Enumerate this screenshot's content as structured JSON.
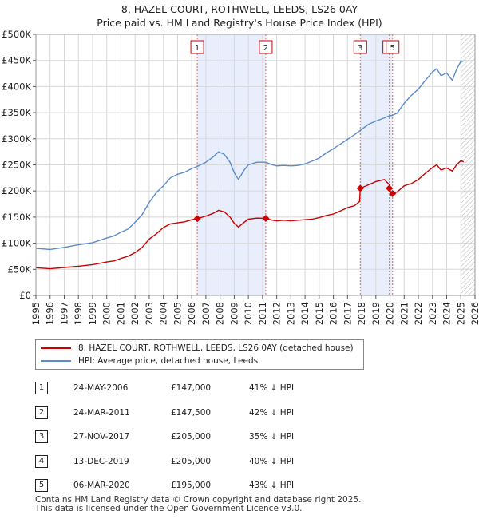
{
  "chart_data": {
    "type": "line",
    "title": "8, HAZEL COURT, ROTHWELL, LEEDS, LS26 0AY",
    "subtitle": "Price paid vs. HM Land Registry's House Price Index (HPI)",
    "xlim": [
      1995,
      2026
    ],
    "ylim": [
      0,
      500000
    ],
    "x_ticks": [
      "1995",
      "1996",
      "1997",
      "1998",
      "1999",
      "2000",
      "2001",
      "2002",
      "2003",
      "2004",
      "2005",
      "2006",
      "2007",
      "2008",
      "2009",
      "2010",
      "2011",
      "2012",
      "2013",
      "2014",
      "2015",
      "2016",
      "2017",
      "2018",
      "2019",
      "2020",
      "2021",
      "2022",
      "2023",
      "2024",
      "2025",
      "2026"
    ],
    "y_ticks": [
      {
        "value": 0,
        "label": "£0"
      },
      {
        "value": 50000,
        "label": "£50K"
      },
      {
        "value": 100000,
        "label": "£100K"
      },
      {
        "value": 150000,
        "label": "£150K"
      },
      {
        "value": 200000,
        "label": "£200K"
      },
      {
        "value": 250000,
        "label": "£250K"
      },
      {
        "value": 300000,
        "label": "£300K"
      },
      {
        "value": 350000,
        "label": "£350K"
      },
      {
        "value": 400000,
        "label": "£400K"
      },
      {
        "value": 450000,
        "label": "£450K"
      },
      {
        "value": 500000,
        "label": "£500K"
      }
    ],
    "shaded_periods": [
      [
        2006.39,
        2011.23
      ],
      [
        2017.9,
        2020.18
      ]
    ],
    "forecast_start": 2025.0,
    "series": [
      {
        "name": "8, HAZEL COURT, ROTHWELL, LEEDS, LS26 0AY (detached house)",
        "color": "#cc0000",
        "points": [
          [
            1995.0,
            53000
          ],
          [
            1996.0,
            51000
          ],
          [
            1997.0,
            53500
          ],
          [
            1998.0,
            56000
          ],
          [
            1999.0,
            59000
          ],
          [
            2000.0,
            64000
          ],
          [
            2000.5,
            66000
          ],
          [
            2001.0,
            71000
          ],
          [
            2001.5,
            75000
          ],
          [
            2002.0,
            82000
          ],
          [
            2002.5,
            92000
          ],
          [
            2003.0,
            108000
          ],
          [
            2003.5,
            118000
          ],
          [
            2004.0,
            130000
          ],
          [
            2004.5,
            137000
          ],
          [
            2005.0,
            139000
          ],
          [
            2005.5,
            141000
          ],
          [
            2006.0,
            145000
          ],
          [
            2006.39,
            147000
          ],
          [
            2007.0,
            152000
          ],
          [
            2007.5,
            157000
          ],
          [
            2007.9,
            163000
          ],
          [
            2008.3,
            160000
          ],
          [
            2008.7,
            150000
          ],
          [
            2009.0,
            138000
          ],
          [
            2009.3,
            131000
          ],
          [
            2009.7,
            140000
          ],
          [
            2010.0,
            146000
          ],
          [
            2010.6,
            148000
          ],
          [
            2011.23,
            147500
          ],
          [
            2011.7,
            144000
          ],
          [
            2012.0,
            143000
          ],
          [
            2012.5,
            144000
          ],
          [
            2013.0,
            143000
          ],
          [
            2013.5,
            144000
          ],
          [
            2014.0,
            145000
          ],
          [
            2014.5,
            146000
          ],
          [
            2015.0,
            149000
          ],
          [
            2015.5,
            153000
          ],
          [
            2016.0,
            156000
          ],
          [
            2016.5,
            162000
          ],
          [
            2017.0,
            168000
          ],
          [
            2017.5,
            172000
          ],
          [
            2017.85,
            180000
          ],
          [
            2017.9,
            205000
          ],
          [
            2018.5,
            212000
          ],
          [
            2019.0,
            218000
          ],
          [
            2019.6,
            222000
          ],
          [
            2019.95,
            212000
          ],
          [
            2019.96,
            205000
          ],
          [
            2020.0,
            200000
          ],
          [
            2020.18,
            195000
          ],
          [
            2020.5,
            198000
          ],
          [
            2021.0,
            210000
          ],
          [
            2021.5,
            214000
          ],
          [
            2022.0,
            222000
          ],
          [
            2022.5,
            234000
          ],
          [
            2023.0,
            245000
          ],
          [
            2023.3,
            250000
          ],
          [
            2023.6,
            240000
          ],
          [
            2024.0,
            244000
          ],
          [
            2024.4,
            238000
          ],
          [
            2024.7,
            250000
          ],
          [
            2025.0,
            258000
          ],
          [
            2025.2,
            256000
          ]
        ]
      },
      {
        "name": "HPI: Average price, detached house, Leeds",
        "color": "#5b8ccc",
        "points": [
          [
            1995.0,
            90000
          ],
          [
            1996.0,
            88000
          ],
          [
            1997.0,
            92000
          ],
          [
            1998.0,
            97000
          ],
          [
            1999.0,
            101000
          ],
          [
            2000.0,
            110000
          ],
          [
            2000.5,
            114000
          ],
          [
            2001.0,
            121000
          ],
          [
            2001.5,
            127000
          ],
          [
            2002.0,
            140000
          ],
          [
            2002.5,
            155000
          ],
          [
            2003.0,
            178000
          ],
          [
            2003.5,
            197000
          ],
          [
            2004.0,
            210000
          ],
          [
            2004.5,
            225000
          ],
          [
            2005.0,
            232000
          ],
          [
            2005.5,
            236000
          ],
          [
            2006.0,
            243000
          ],
          [
            2006.39,
            247000
          ],
          [
            2007.0,
            255000
          ],
          [
            2007.5,
            265000
          ],
          [
            2007.9,
            275000
          ],
          [
            2008.3,
            270000
          ],
          [
            2008.7,
            255000
          ],
          [
            2009.0,
            235000
          ],
          [
            2009.3,
            222000
          ],
          [
            2009.7,
            240000
          ],
          [
            2010.0,
            250000
          ],
          [
            2010.6,
            255000
          ],
          [
            2011.23,
            255000
          ],
          [
            2011.7,
            250000
          ],
          [
            2012.0,
            248000
          ],
          [
            2012.5,
            249000
          ],
          [
            2013.0,
            248000
          ],
          [
            2013.5,
            249000
          ],
          [
            2014.0,
            252000
          ],
          [
            2014.5,
            257000
          ],
          [
            2015.0,
            263000
          ],
          [
            2015.5,
            273000
          ],
          [
            2016.0,
            281000
          ],
          [
            2016.5,
            290000
          ],
          [
            2017.0,
            299000
          ],
          [
            2017.5,
            308000
          ],
          [
            2017.9,
            316000
          ],
          [
            2018.5,
            328000
          ],
          [
            2019.0,
            334000
          ],
          [
            2019.6,
            340000
          ],
          [
            2019.95,
            344000
          ],
          [
            2020.18,
            345000
          ],
          [
            2020.5,
            349000
          ],
          [
            2021.0,
            368000
          ],
          [
            2021.5,
            383000
          ],
          [
            2022.0,
            395000
          ],
          [
            2022.5,
            412000
          ],
          [
            2023.0,
            428000
          ],
          [
            2023.3,
            434000
          ],
          [
            2023.6,
            421000
          ],
          [
            2024.0,
            426000
          ],
          [
            2024.4,
            412000
          ],
          [
            2024.7,
            433000
          ],
          [
            2025.0,
            448000
          ],
          [
            2025.2,
            449000
          ]
        ]
      }
    ],
    "sales": [
      {
        "id": "1",
        "x": 2006.39,
        "price": 147000
      },
      {
        "id": "2",
        "x": 2011.23,
        "price": 147500
      },
      {
        "id": "3",
        "x": 2017.9,
        "price": 205000
      },
      {
        "id": "4",
        "x": 2019.95,
        "price": 205000
      },
      {
        "id": "5",
        "x": 2020.18,
        "price": 195000
      }
    ]
  },
  "legend": {
    "property_label": "8, HAZEL COURT, ROTHWELL, LEEDS, LS26 0AY (detached house)",
    "hpi_label": "HPI: Average price, detached house, Leeds",
    "property_color": "#cc0000",
    "hpi_color": "#5b8ccc"
  },
  "transactions": [
    {
      "num": "1",
      "date": "24-MAY-2006",
      "price": "£147,000",
      "hpi": "41% ↓ HPI"
    },
    {
      "num": "2",
      "date": "24-MAR-2011",
      "price": "£147,500",
      "hpi": "42% ↓ HPI"
    },
    {
      "num": "3",
      "date": "27-NOV-2017",
      "price": "£205,000",
      "hpi": "35% ↓ HPI"
    },
    {
      "num": "4",
      "date": "13-DEC-2019",
      "price": "£205,000",
      "hpi": "40% ↓ HPI"
    },
    {
      "num": "5",
      "date": "06-MAR-2020",
      "price": "£195,000",
      "hpi": "43% ↓ HPI"
    }
  ],
  "footer": {
    "line1": "Contains HM Land Registry data © Crown copyright and database right 2025.",
    "line2": "This data is licensed under the Open Government Licence v3.0."
  }
}
